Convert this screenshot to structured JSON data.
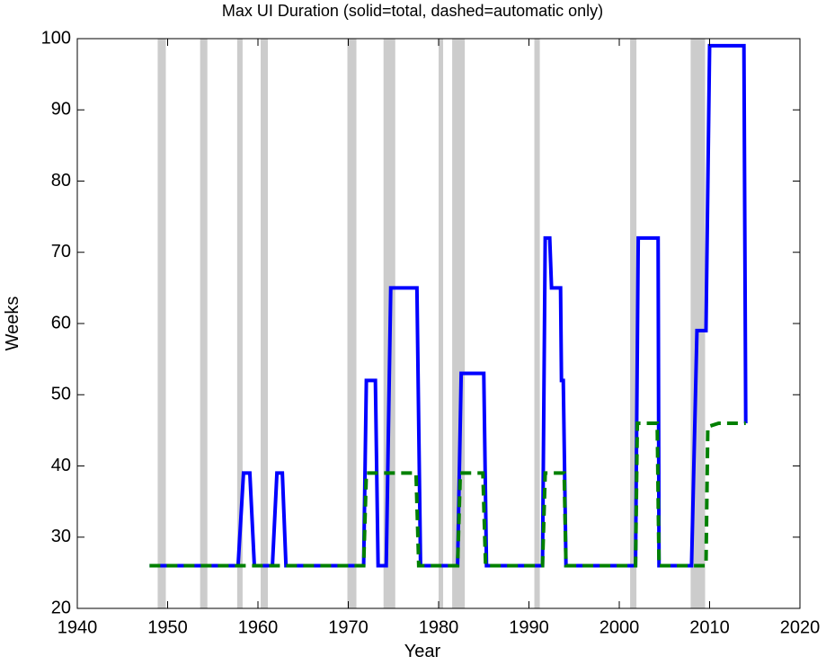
{
  "chart_data": {
    "type": "line",
    "title": "Max UI Duration (solid=total, dashed=automatic only)",
    "xlabel": "Year",
    "ylabel": "Weeks",
    "xlim": [
      1940,
      2020
    ],
    "xticks": [
      1940,
      1950,
      1960,
      1970,
      1980,
      1990,
      2000,
      2010,
      2020
    ],
    "ylim": [
      20,
      100
    ],
    "yticks": [
      20,
      30,
      40,
      50,
      60,
      70,
      80,
      90,
      100
    ],
    "shading_color": "#cccccc",
    "recessions": [
      [
        1948.9,
        1949.8
      ],
      [
        1953.6,
        1954.4
      ],
      [
        1957.7,
        1958.3
      ],
      [
        1960.3,
        1961.1
      ],
      [
        1969.9,
        1970.9
      ],
      [
        1973.9,
        1975.2
      ],
      [
        1980.0,
        1980.5
      ],
      [
        1981.5,
        1982.9
      ],
      [
        1990.6,
        1991.2
      ],
      [
        2001.2,
        2001.9
      ],
      [
        2007.9,
        2009.5
      ]
    ],
    "series": [
      {
        "style": "solid",
        "color": "#0000ff",
        "x": [
          1948,
          1957.8,
          1958.4,
          1959.1,
          1959.6,
          1961.6,
          1962.1,
          1962.7,
          1963.1,
          1971.7,
          1972.0,
          1973.0,
          1973.3,
          1974.2,
          1974.7,
          1977.6,
          1978.0,
          1982.1,
          1982.5,
          1985.0,
          1985.3,
          1991.5,
          1991.8,
          1992.3,
          1992.5,
          1993.5,
          1993.6,
          1993.8,
          1994.1,
          2001.8,
          2002.1,
          2004.3,
          2004.4,
          2008.0,
          2008.6,
          2009.6,
          2010.0,
          2013.8,
          2014.0
        ],
        "values": [
          26,
          26,
          39,
          39,
          26,
          26,
          39,
          39,
          26,
          26,
          52,
          52,
          26,
          26,
          65,
          65,
          26,
          26,
          53,
          53,
          26,
          26,
          72,
          72,
          65,
          65,
          52,
          52,
          26,
          26,
          72,
          72,
          26,
          26,
          59,
          59,
          99,
          99,
          46
        ]
      },
      {
        "style": "dashed",
        "color": "#008000",
        "x": [
          1948,
          1971.7,
          1972.0,
          1977.5,
          1977.8,
          1982.1,
          1982.4,
          1984.9,
          1985.2,
          1991.5,
          1991.8,
          1993.9,
          1994.1,
          2001.8,
          2002.0,
          2004.2,
          2004.4,
          2009.6,
          2009.8,
          2011.0,
          2014.0
        ],
        "values": [
          26,
          26,
          39,
          39,
          26,
          26,
          39,
          39,
          26,
          26,
          39,
          39,
          26,
          26,
          46,
          46,
          26,
          26,
          45.5,
          46,
          46
        ]
      }
    ]
  }
}
